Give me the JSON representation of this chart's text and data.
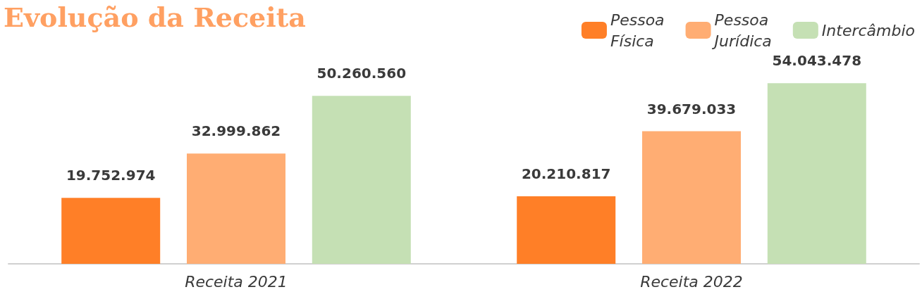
{
  "chart_data": {
    "type": "bar",
    "title": "Evolução da Receita",
    "categories": [
      "Receita 2021",
      "Receita 2022"
    ],
    "series": [
      {
        "name": "Pessoa Física",
        "color": "#ff7f27",
        "values": [
          19752974,
          20210817
        ],
        "value_labels": [
          "19.752.974",
          "20.210.817"
        ]
      },
      {
        "name": "Pessoa Jurídica",
        "color": "#ffad73",
        "values": [
          32999862,
          39679033
        ],
        "value_labels": [
          "32.999.862",
          "39.679.033"
        ]
      },
      {
        "name": "Intercâmbio",
        "color": "#c5e0b4",
        "values": [
          50260560,
          54043478
        ],
        "value_labels": [
          "50.260.560",
          "54.043.478"
        ]
      }
    ],
    "grid": false,
    "legend": "top right"
  }
}
